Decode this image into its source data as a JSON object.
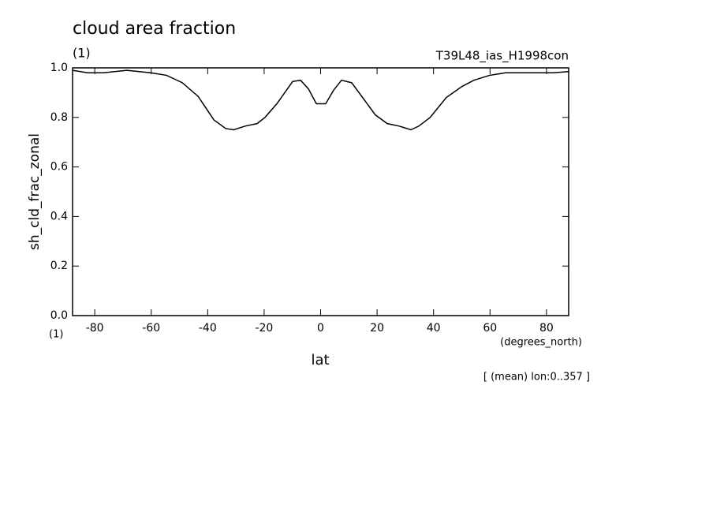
{
  "chart_data": {
    "type": "line",
    "title": "cloud area fraction",
    "title_unit": "(1)",
    "subtitle": "T39L48_ias_H1998con",
    "y_label": "sh_cld_frac_zonal",
    "y_unit": "(1)",
    "x_label": "lat",
    "x_unit": "(degrees_north)",
    "annotation": "[ (mean) lon:0..357 ]",
    "xlim": [
      -87.86,
      87.86
    ],
    "xticks": [
      -80,
      -60,
      -40,
      -20,
      0,
      20,
      40,
      60,
      80
    ],
    "ylim": [
      0,
      1
    ],
    "yticks": [
      {
        "value": 0,
        "label": "0.0"
      },
      0.2,
      0.4,
      0.6,
      0.8,
      {
        "value": 1,
        "label": "1.0"
      }
    ],
    "grid": false,
    "series": [
      {
        "name": "sh_cld_frac_zonal",
        "color": "#000000",
        "x": [
          -87.86,
          -82.5,
          -77.0,
          -68.6,
          -60.2,
          -54.6,
          -49.0,
          -43.4,
          -37.8,
          -33.6,
          -30.8,
          -26.7,
          -22.5,
          -19.7,
          -15.5,
          -9.9,
          -7.1,
          -4.3,
          -1.5,
          1.8,
          4.6,
          7.4,
          11.0,
          15.2,
          19.4,
          23.6,
          27.8,
          32.0,
          34.8,
          38.8,
          44.5,
          50.1,
          54.3,
          59.9,
          65.5,
          71.1,
          76.7,
          82.3,
          87.86
        ],
        "values": [
          0.99,
          0.98,
          0.98,
          0.99,
          0.98,
          0.97,
          0.94,
          0.885,
          0.79,
          0.755,
          0.75,
          0.765,
          0.775,
          0.8,
          0.855,
          0.945,
          0.95,
          0.915,
          0.855,
          0.855,
          0.91,
          0.95,
          0.94,
          0.875,
          0.81,
          0.775,
          0.765,
          0.75,
          0.765,
          0.8,
          0.88,
          0.925,
          0.95,
          0.97,
          0.98,
          0.98,
          0.98,
          0.98,
          0.985
        ]
      }
    ]
  }
}
